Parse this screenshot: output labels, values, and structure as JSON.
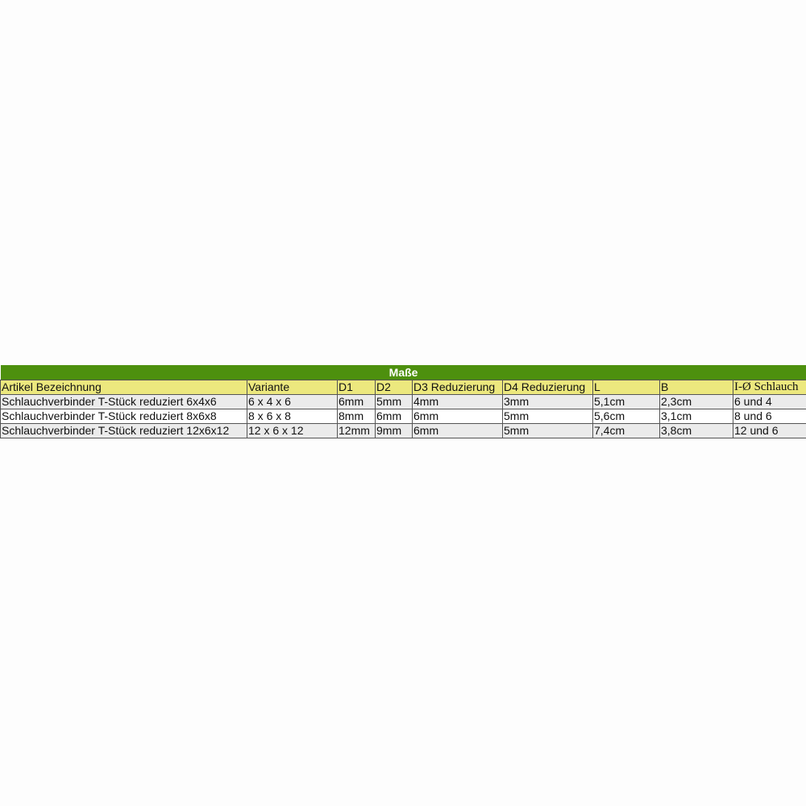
{
  "title": "Maße",
  "colors": {
    "title_bg": "#4d900e",
    "header_bg": "#ece87e",
    "row_alt": "#ebebeb"
  },
  "headers": [
    "Artikel Bezeichnung",
    "Variante",
    "D1",
    "D2",
    "D3 Reduzierung",
    "D4 Reduzierung",
    "L",
    "B",
    "I-Ø Schlauch"
  ],
  "rows": [
    [
      "Schlauchverbinder T-Stück reduziert 6x4x6",
      "6 x 4 x 6",
      "6mm",
      "5mm",
      "4mm",
      "3mm",
      "5,1cm",
      "2,3cm",
      "6 und 4"
    ],
    [
      "Schlauchverbinder T-Stück reduziert 8x6x8",
      "8 x 6 x 8",
      "8mm",
      "6mm",
      "6mm",
      "5mm",
      "5,6cm",
      "3,1cm",
      "8 und 6"
    ],
    [
      "Schlauchverbinder T-Stück reduziert 12x6x12",
      "12 x 6 x 12",
      "12mm",
      "9mm",
      "6mm",
      "5mm",
      "7,4cm",
      "3,8cm",
      "12 und 6"
    ]
  ]
}
